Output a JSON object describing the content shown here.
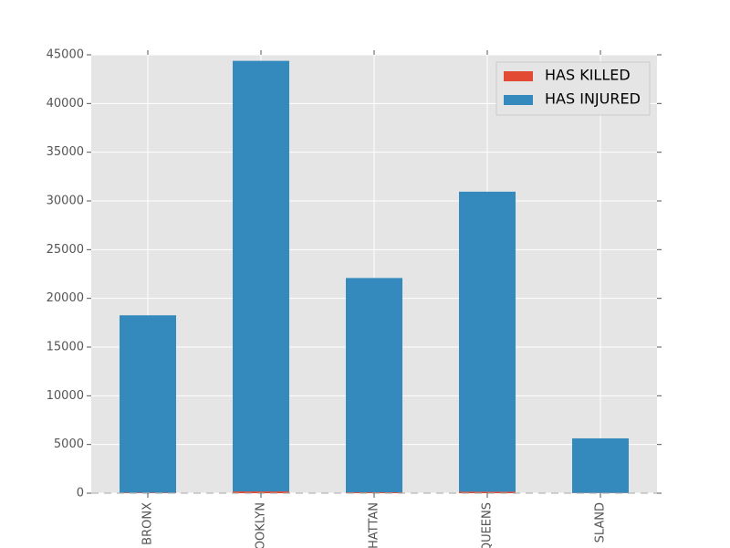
{
  "chart_data": {
    "type": "bar",
    "stacked": true,
    "categories": [
      "BRONX",
      "OOKLYN",
      "HATTAN",
      "QUEENS",
      "SLAND"
    ],
    "series": [
      {
        "name": "HAS KILLED",
        "color": "#E24A33",
        "values": [
          60,
          180,
          90,
          150,
          30
        ]
      },
      {
        "name": "HAS INJURED",
        "color": "#348ABD",
        "values": [
          18200,
          44200,
          22000,
          30800,
          5600
        ]
      }
    ],
    "ylim": [
      0,
      45000
    ],
    "yticks": [
      0,
      5000,
      10000,
      15000,
      20000,
      25000,
      30000,
      35000,
      40000,
      45000
    ],
    "grid": true,
    "legend": "upper right"
  }
}
